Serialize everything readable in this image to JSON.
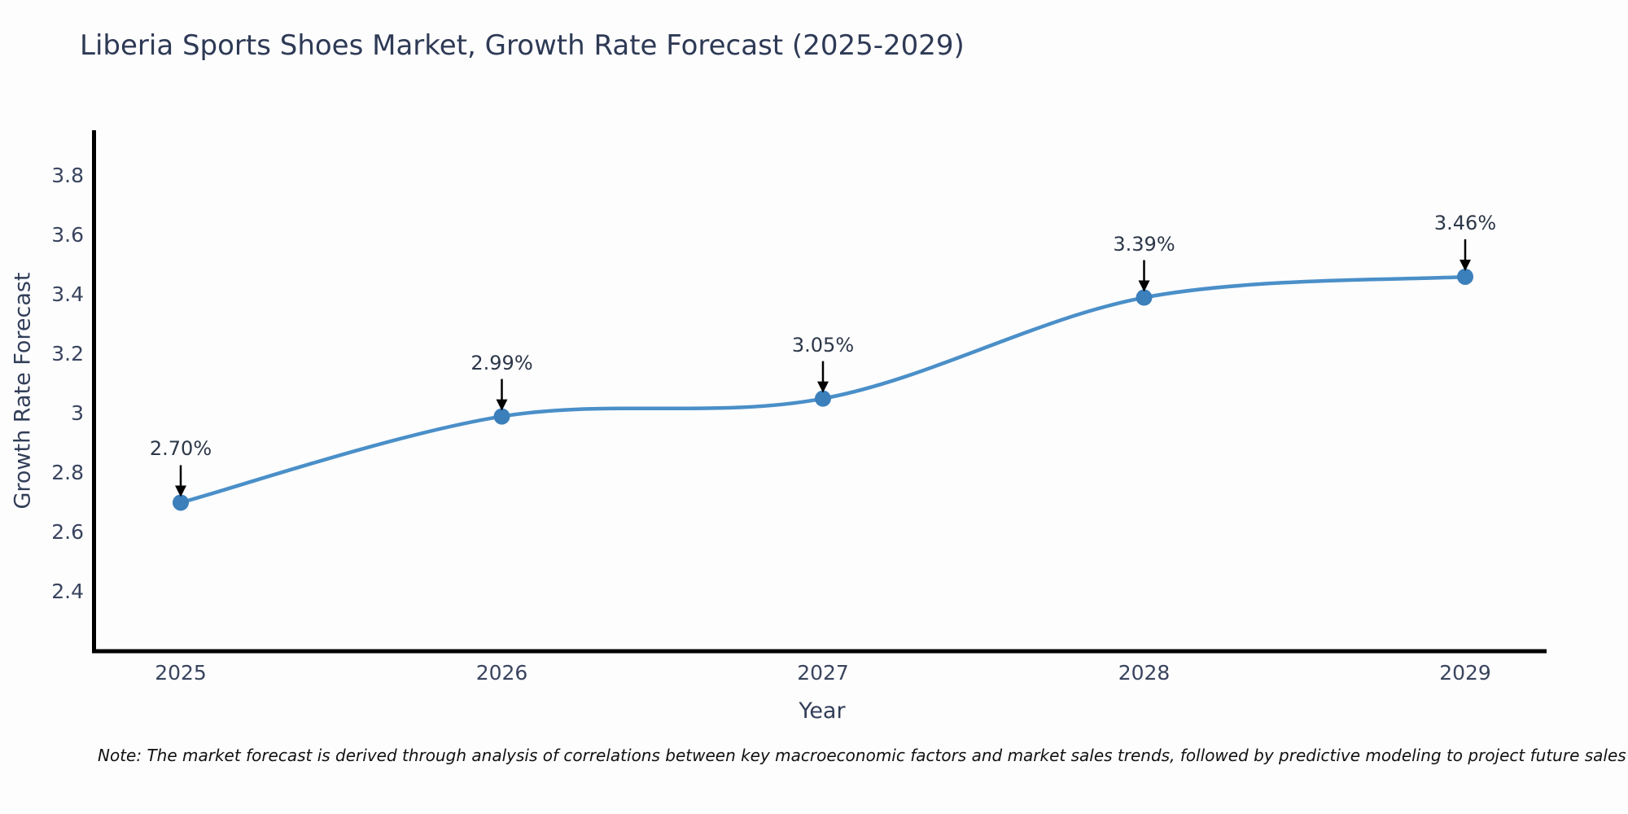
{
  "title": "Liberia Sports Shoes Market, Growth Rate Forecast (2025-2029)",
  "note": "Note: The market forecast is derived through analysis of correlations between key macroeconomic factors and market sales trends, followed by predictive modeling to project future sales",
  "chart_data": {
    "type": "line",
    "title": "Liberia Sports Shoes Market, Growth Rate Forecast (2025-2029)",
    "xlabel": "Year",
    "ylabel": "Growth Rate Forecast",
    "categories": [
      "2025",
      "2026",
      "2027",
      "2028",
      "2029"
    ],
    "series": [
      {
        "name": "Growth Rate Forecast",
        "values": [
          2.7,
          2.99,
          3.05,
          3.39,
          3.46
        ]
      }
    ],
    "point_labels": [
      "2.70%",
      "2.99%",
      "3.05%",
      "3.39%",
      "3.46%"
    ],
    "ytick_values": [
      2.4,
      2.6,
      2.8,
      3.0,
      3.2,
      3.4,
      3.6,
      3.8
    ],
    "ytick_labels": [
      "2.4",
      "2.6",
      "2.8",
      "3",
      "3.2",
      "3.4",
      "3.6",
      "3.8"
    ],
    "ylim": [
      2.2,
      3.953
    ],
    "grid": false,
    "legend_position": "none",
    "line_color": "#4a8fc8",
    "marker_color": "#3b7fbb",
    "spine_color": "#000000",
    "arrow_color": "#000000",
    "text_color": "#2e3a55"
  }
}
